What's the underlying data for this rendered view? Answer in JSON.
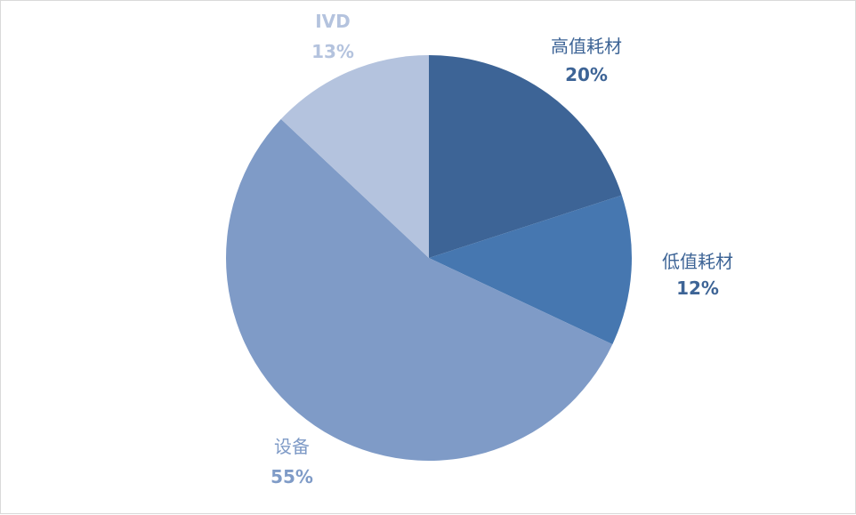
{
  "chart_data": {
    "type": "pie",
    "slices": [
      {
        "label": "高值耗材",
        "value": 20,
        "value_label": "20%",
        "color": "#3d6496",
        "label_color": "#3d6496"
      },
      {
        "label": "低值耗材",
        "value": 12,
        "value_label": "12%",
        "color": "#4677b0",
        "label_color": "#3d6496"
      },
      {
        "label": "设备",
        "value": 55,
        "value_label": "55%",
        "color": "#7f9bc7",
        "label_color": "#7f9bc7"
      },
      {
        "label": "IVD",
        "value": 13,
        "value_label": "13%",
        "color": "#b4c3de",
        "label_color": "#b4c3de"
      }
    ],
    "start_angle_deg": 0,
    "direction": "clockwise",
    "legend": "none"
  }
}
